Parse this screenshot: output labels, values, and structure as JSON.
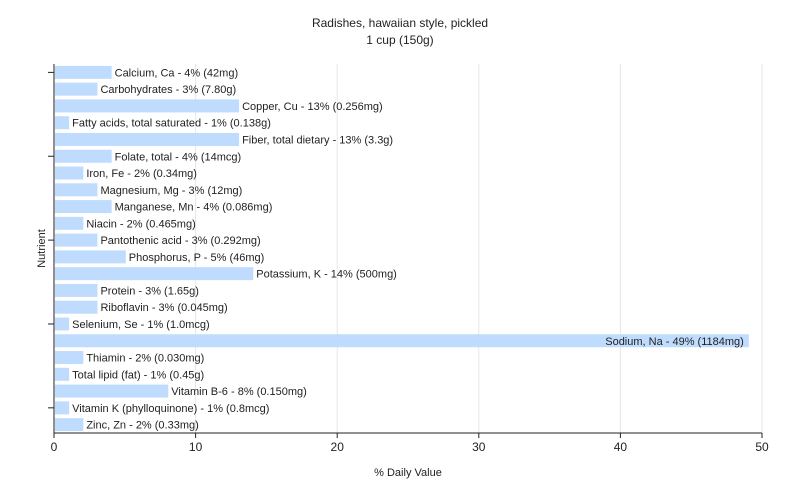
{
  "chart_data": {
    "type": "bar",
    "orientation": "horizontal",
    "title": "Radishes, hawaiian style, pickled",
    "subtitle": "1 cup (150g)",
    "xlabel": "% Daily Value",
    "ylabel": "Nutrient",
    "xlim": [
      0,
      50
    ],
    "xticks": [
      0,
      10,
      20,
      30,
      40,
      50
    ],
    "grid": true,
    "bar_color": "#bfdcff",
    "categories": [
      "Calcium, Ca",
      "Carbohydrates",
      "Copper, Cu",
      "Fatty acids, total saturated",
      "Fiber, total dietary",
      "Folate, total",
      "Iron, Fe",
      "Magnesium, Mg",
      "Manganese, Mn",
      "Niacin",
      "Pantothenic acid",
      "Phosphorus, P",
      "Potassium, K",
      "Protein",
      "Riboflavin",
      "Selenium, Se",
      "Sodium, Na",
      "Thiamin",
      "Total lipid (fat)",
      "Vitamin B-6",
      "Vitamin K (phylloquinone)",
      "Zinc, Zn"
    ],
    "values": [
      4,
      3,
      13,
      1,
      13,
      4,
      2,
      3,
      4,
      2,
      3,
      5,
      14,
      3,
      3,
      1,
      49,
      2,
      1,
      8,
      1,
      2
    ],
    "labels": [
      "Calcium, Ca - 4% (42mg)",
      "Carbohydrates - 3% (7.80g)",
      "Copper, Cu - 13% (0.256mg)",
      "Fatty acids, total saturated - 1% (0.138g)",
      "Fiber, total dietary - 13% (3.3g)",
      "Folate, total - 4% (14mcg)",
      "Iron, Fe - 2% (0.34mg)",
      "Magnesium, Mg - 3% (12mg)",
      "Manganese, Mn - 4% (0.086mg)",
      "Niacin - 2% (0.465mg)",
      "Pantothenic acid - 3% (0.292mg)",
      "Phosphorus, P - 5% (46mg)",
      "Potassium, K - 14% (500mg)",
      "Protein - 3% (1.65g)",
      "Riboflavin - 3% (0.045mg)",
      "Selenium, Se - 1% (1.0mcg)",
      "Sodium, Na - 49% (1184mg)",
      "Thiamin - 2% (0.030mg)",
      "Total lipid (fat) - 1% (0.45g)",
      "Vitamin B-6 - 8% (0.150mg)",
      "Vitamin K (phylloquinone) - 1% (0.8mcg)",
      "Zinc, Zn - 2% (0.33mg)"
    ]
  }
}
